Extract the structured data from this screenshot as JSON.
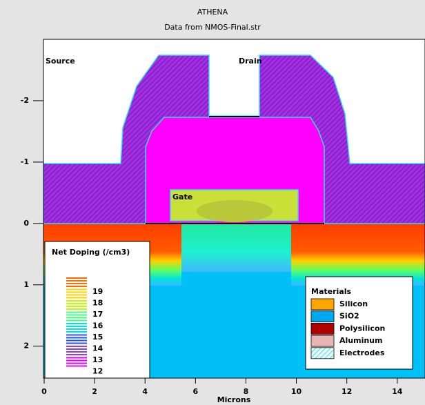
{
  "chart_data": {
    "type": "cross-section",
    "title": "ATHENA",
    "subtitle": "Data from NMOS-Final.str",
    "x_label": "Microns",
    "xlim": [
      0,
      15.1
    ],
    "xticks": [
      0,
      2,
      4,
      6,
      8,
      10,
      12,
      14
    ],
    "ylim": [
      -3,
      2.52
    ],
    "yticks": [
      -2,
      -1,
      0,
      1,
      2
    ],
    "y_inverted": true,
    "region_labels": [
      "Source",
      "Drain",
      "Gate"
    ],
    "doping_legend": {
      "title": "Net Doping (/cm3)",
      "levels": [
        19,
        18,
        17,
        16,
        15,
        14,
        13,
        12
      ],
      "colors": [
        "#ff6a00",
        "#ffd000",
        "#b8ff00",
        "#40ff80",
        "#00e0e0",
        "#2050ff",
        "#8040ff",
        "#e000ff"
      ]
    },
    "materials_legend": {
      "title": "Materials",
      "names": [
        "Silicon",
        "SiO2",
        "Polysilicon",
        "Aluminum",
        "Electrodes"
      ],
      "colors": [
        "#ffa500",
        "#00a8f0",
        "#b00000",
        "#e8b4b4",
        "#a0f0f0"
      ]
    }
  }
}
